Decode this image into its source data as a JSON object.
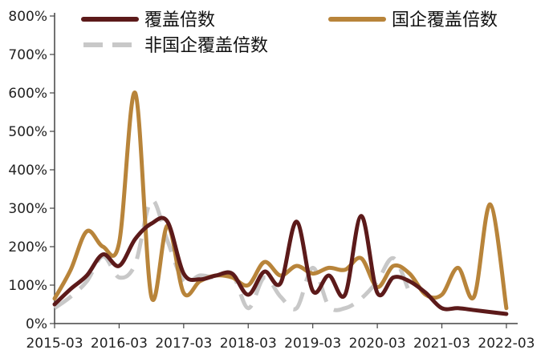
{
  "chart_data": {
    "type": "line",
    "title": "",
    "xlabel": "",
    "ylabel": "",
    "ylim": [
      0,
      800
    ],
    "y_unit": "%",
    "y_ticks": [
      0,
      100,
      200,
      300,
      400,
      500,
      600,
      700,
      800
    ],
    "y_tick_labels": [
      "0%",
      "100%",
      "200%",
      "300%",
      "400%",
      "500%",
      "600%",
      "700%",
      "800%"
    ],
    "x_ticks": [
      0,
      4,
      8,
      12,
      16,
      20,
      24,
      28
    ],
    "x_tick_labels": [
      "2015-03",
      "2016-03",
      "2017-03",
      "2018-03",
      "2019-03",
      "2020-03",
      "2021-03",
      "2022-03"
    ],
    "xlim": [
      0,
      28.5
    ],
    "grid": false,
    "legend_position": "top",
    "series": [
      {
        "name": "覆盖倍数",
        "color": "#5c1a1a",
        "dash": "solid",
        "points": [
          [
            0,
            50
          ],
          [
            1,
            90
          ],
          [
            2,
            125
          ],
          [
            3,
            180
          ],
          [
            4,
            150
          ],
          [
            5,
            220
          ],
          [
            6,
            260
          ],
          [
            7,
            265
          ],
          [
            8,
            130
          ],
          [
            9,
            115
          ],
          [
            10,
            125
          ],
          [
            11,
            130
          ],
          [
            12,
            75
          ],
          [
            13,
            135
          ],
          [
            14,
            105
          ],
          [
            15,
            265
          ],
          [
            16,
            85
          ],
          [
            17,
            125
          ],
          [
            18,
            75
          ],
          [
            19,
            280
          ],
          [
            20,
            80
          ],
          [
            21,
            120
          ],
          [
            22,
            110
          ],
          [
            23,
            80
          ],
          [
            24,
            40
          ],
          [
            25,
            40
          ],
          [
            26,
            35
          ],
          [
            27,
            30
          ],
          [
            28,
            25
          ]
        ]
      },
      {
        "name": "国企覆盖倍数",
        "color": "#b8843a",
        "dash": "solid",
        "points": [
          [
            0,
            65
          ],
          [
            1,
            140
          ],
          [
            2,
            240
          ],
          [
            3,
            200
          ],
          [
            4,
            210
          ],
          [
            5,
            600
          ],
          [
            6,
            70
          ],
          [
            7,
            255
          ],
          [
            8,
            80
          ],
          [
            9,
            110
          ],
          [
            10,
            125
          ],
          [
            11,
            120
          ],
          [
            12,
            100
          ],
          [
            13,
            160
          ],
          [
            14,
            125
          ],
          [
            15,
            150
          ],
          [
            16,
            130
          ],
          [
            17,
            145
          ],
          [
            18,
            140
          ],
          [
            19,
            170
          ],
          [
            20,
            95
          ],
          [
            21,
            150
          ],
          [
            22,
            130
          ],
          [
            23,
            75
          ],
          [
            24,
            75
          ],
          [
            25,
            145
          ],
          [
            26,
            70
          ],
          [
            27,
            310
          ],
          [
            28,
            40
          ]
        ]
      },
      {
        "name": "非国企覆盖倍数",
        "color": "#c8c8c8",
        "dash": "dash",
        "points": [
          [
            0,
            40
          ],
          [
            1,
            70
          ],
          [
            2,
            110
          ],
          [
            3,
            175
          ],
          [
            4,
            120
          ],
          [
            5,
            155
          ],
          [
            6,
            320
          ],
          [
            7,
            215
          ],
          [
            8,
            110
          ],
          [
            9,
            125
          ],
          [
            10,
            120
          ],
          [
            11,
            130
          ],
          [
            12,
            40
          ],
          [
            13,
            120
          ],
          [
            14,
            70
          ],
          [
            15,
            40
          ],
          [
            16,
            145
          ],
          [
            17,
            45
          ],
          [
            18,
            40
          ],
          [
            19,
            65
          ],
          [
            20,
            110
          ],
          [
            21,
            170
          ],
          [
            22,
            80
          ]
        ]
      }
    ]
  }
}
